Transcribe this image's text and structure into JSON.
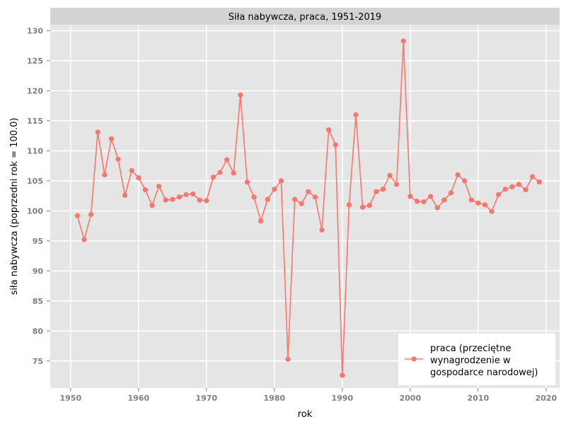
{
  "chart_data": {
    "type": "line",
    "title": "Siła nabywcza, praca, 1951-2019",
    "xlabel": "rok",
    "ylabel": "siła nabywcza (poprzedni rok = 100.0)",
    "xlim": [
      1947,
      2022
    ],
    "ylim": [
      70.5,
      131
    ],
    "x_ticks": [
      1950,
      1960,
      1970,
      1980,
      1990,
      2000,
      2010,
      2020
    ],
    "y_ticks": [
      75,
      80,
      85,
      90,
      95,
      100,
      105,
      110,
      115,
      120,
      125,
      130
    ],
    "grid": true,
    "legend_position": "bottom-right",
    "colors": {
      "panel": "#e5e5e5",
      "strip": "#d3d3d3",
      "grid": "#ffffff",
      "series": "#f8766d"
    },
    "series": [
      {
        "name": "praca (przeciętne wynagrodzenie w gospodarce narodowej)",
        "legend_lines": [
          "praca (przeciętne",
          "wynagrodzenie w",
          "gospodarce narodowej)"
        ],
        "x": [
          1951,
          1952,
          1953,
          1954,
          1955,
          1956,
          1957,
          1958,
          1959,
          1960,
          1961,
          1962,
          1963,
          1964,
          1965,
          1966,
          1967,
          1968,
          1969,
          1970,
          1971,
          1972,
          1973,
          1974,
          1975,
          1976,
          1977,
          1978,
          1979,
          1980,
          1981,
          1982,
          1983,
          1984,
          1985,
          1986,
          1987,
          1988,
          1989,
          1990,
          1991,
          1992,
          1993,
          1994,
          1995,
          1996,
          1997,
          1998,
          1999,
          2000,
          2001,
          2002,
          2003,
          2004,
          2005,
          2006,
          2007,
          2008,
          2009,
          2010,
          2011,
          2012,
          2013,
          2014,
          2015,
          2016,
          2017,
          2018,
          2019
        ],
        "values": [
          99.2,
          95.2,
          99.4,
          113.1,
          106.0,
          112.0,
          108.6,
          102.6,
          106.7,
          105.5,
          103.5,
          100.9,
          104.1,
          101.8,
          101.9,
          102.3,
          102.7,
          102.8,
          101.8,
          101.7,
          105.6,
          106.4,
          108.5,
          106.3,
          119.3,
          104.8,
          102.3,
          98.3,
          101.9,
          103.6,
          105.0,
          75.3,
          101.9,
          101.2,
          103.2,
          102.3,
          96.8,
          113.5,
          111.0,
          72.6,
          101.0,
          116.0,
          100.6,
          100.9,
          103.2,
          103.6,
          105.9,
          104.4,
          128.3,
          102.4,
          101.6,
          101.5,
          102.4,
          100.5,
          101.8,
          103.0,
          106.0,
          105.0,
          101.8,
          101.3,
          101.0,
          99.9,
          102.7,
          103.6,
          104.0,
          104.4,
          103.5,
          105.7,
          104.8
        ]
      }
    ]
  }
}
